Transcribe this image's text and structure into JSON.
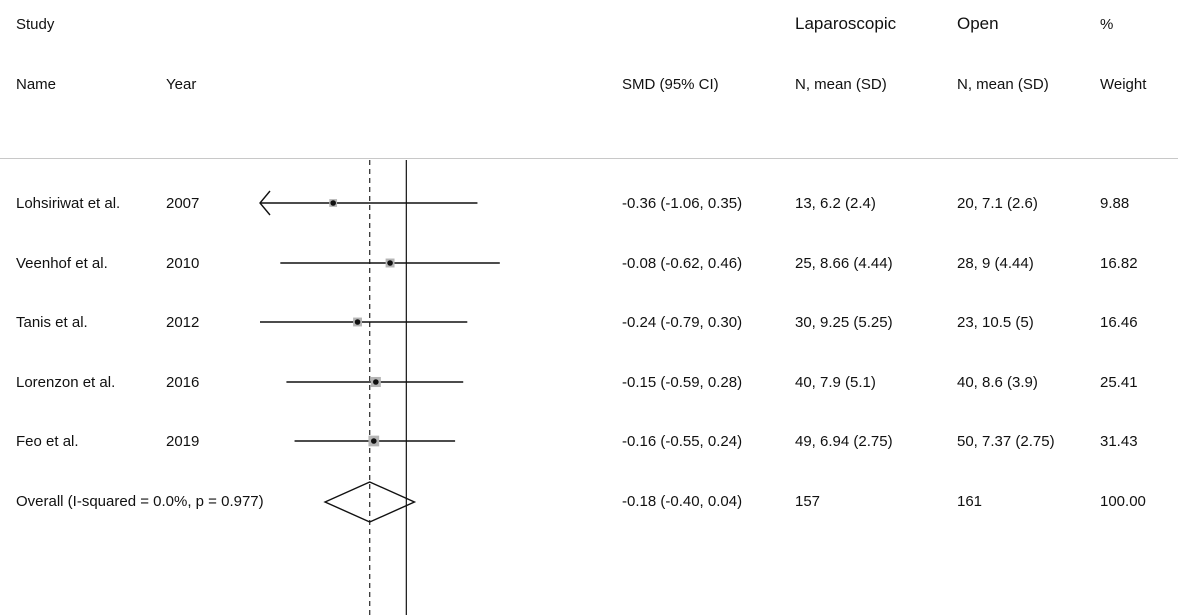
{
  "header": {
    "study": "Study",
    "name": "Name",
    "year": "Year",
    "smd": "SMD (95% CI)",
    "lap_group": "Laparoscopic",
    "lap_sub": "N, mean (SD)",
    "open_group": "Open",
    "open_sub": "N, mean (SD)",
    "pct": "%",
    "weight": "Weight"
  },
  "studies": [
    {
      "name": "Lohsiriwat et al.",
      "year": "2007",
      "smd_text": "-0.36 (-1.06, 0.35)",
      "lap": "13, 6.2 (2.4)",
      "open": "20, 7.1 (2.6)",
      "weight": "9.88"
    },
    {
      "name": "Veenhof et al.",
      "year": "2010",
      "smd_text": "-0.08 (-0.62, 0.46)",
      "lap": "25, 8.66 (4.44)",
      "open": "28, 9 (4.44)",
      "weight": "16.82"
    },
    {
      "name": "Tanis et al.",
      "year": "2012",
      "smd_text": "-0.24 (-0.79, 0.30)",
      "lap": "30, 9.25 (5.25)",
      "open": "23, 10.5 (5)",
      "weight": "16.46"
    },
    {
      "name": "Lorenzon et al.",
      "year": "2016",
      "smd_text": "-0.15 (-0.59, 0.28)",
      "lap": "40, 7.9 (5.1)",
      "open": "40, 8.6 (3.9)",
      "weight": "25.41"
    },
    {
      "name": "Feo et al.",
      "year": "2019",
      "smd_text": "-0.16 (-0.55, 0.24)",
      "lap": "49, 6.94 (2.75)",
      "open": "50, 7.37 (2.75)",
      "weight": "31.43"
    }
  ],
  "overall": {
    "label": "Overall  (I-squared = 0.0%, p = 0.977)",
    "smd_text": "-0.18 (-0.40, 0.04)",
    "lap": "157",
    "open": "161",
    "weight": "100.00"
  },
  "chart_data": {
    "type": "forest",
    "x_min": -0.72,
    "x_max": 0.52,
    "null_line": 0,
    "pooled_line": -0.18,
    "studies": [
      {
        "smd": -0.36,
        "lo": -1.06,
        "hi": 0.35,
        "weight": 9.88,
        "arrow_left": true
      },
      {
        "smd": -0.08,
        "lo": -0.62,
        "hi": 0.46,
        "weight": 16.82
      },
      {
        "smd": -0.24,
        "lo": -0.79,
        "hi": 0.3,
        "weight": 16.46
      },
      {
        "smd": -0.15,
        "lo": -0.59,
        "hi": 0.28,
        "weight": 25.41
      },
      {
        "smd": -0.16,
        "lo": -0.55,
        "hi": 0.24,
        "weight": 31.43
      }
    ],
    "overall": {
      "smd": -0.18,
      "lo": -0.4,
      "hi": 0.04
    }
  }
}
